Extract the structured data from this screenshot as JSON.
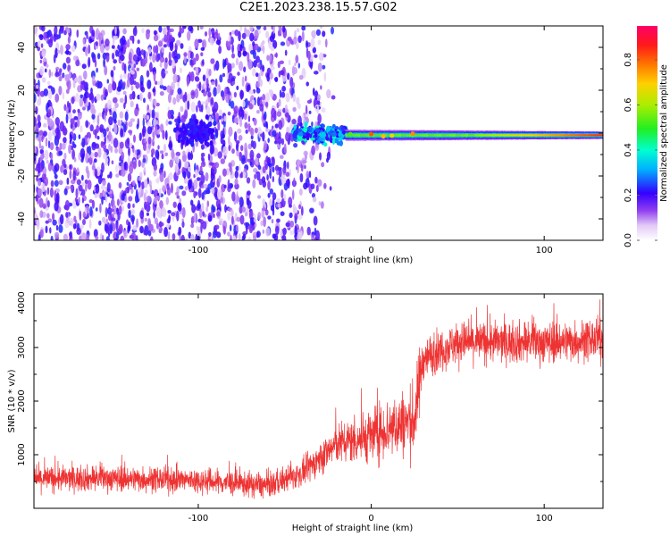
{
  "title": "C2E1.2023.238.15.57.G02",
  "colors": {
    "line": "#ee3333",
    "axis": "#000000"
  },
  "chart_data": [
    {
      "type": "heatmap",
      "title": "C2E1.2023.238.15.57.G02",
      "xlabel": "Height of straight line (km)",
      "ylabel": "Frequency (Hz)",
      "xlim": [
        -195,
        134
      ],
      "ylim": [
        -50,
        50
      ],
      "x_ticks": [
        -100,
        0,
        100
      ],
      "y_ticks": [
        -40,
        -20,
        0,
        20,
        40
      ],
      "colorbar": {
        "label": "Normalized spectral amplitude",
        "range": [
          0,
          0.95
        ],
        "ticks": [
          0.0,
          0.2,
          0.4,
          0.6,
          0.8
        ],
        "tick_labels": [
          "0.0",
          "0.2",
          "0.4",
          "0.6",
          "0.8"
        ],
        "colormap": "white-violet-blue-cyan-green-yellow-orange-red-magenta"
      },
      "features": [
        {
          "region": "noise",
          "x_range": [
            -195,
            -45
          ],
          "y_range": [
            -50,
            50
          ],
          "amplitude": 0.1
        },
        {
          "region": "transition",
          "x_range": [
            -45,
            -15
          ],
          "y_range": [
            -5,
            6
          ],
          "amplitude": 0.3
        },
        {
          "region": "signal_band",
          "x_range": [
            -15,
            134
          ],
          "center_frequency": -1,
          "amplitude_range": [
            0.3,
            0.9
          ]
        }
      ]
    },
    {
      "type": "line",
      "xlabel": "Height of straight line (km)",
      "ylabel": "SNR (10 * v/v)",
      "xlim": [
        -195,
        134
      ],
      "ylim": [
        0,
        4000
      ],
      "x_ticks": [
        -100,
        0,
        100
      ],
      "y_ticks": [
        1000,
        2000,
        3000,
        4000
      ],
      "series": [
        {
          "x": [
            -195,
            -150,
            -100,
            -60,
            -40,
            -20,
            0,
            10,
            25,
            30,
            50,
            100,
            134
          ],
          "y": [
            550,
            560,
            520,
            420,
            650,
            1200,
            1350,
            1500,
            1650,
            2800,
            3100,
            3100,
            3150
          ]
        }
      ]
    }
  ]
}
